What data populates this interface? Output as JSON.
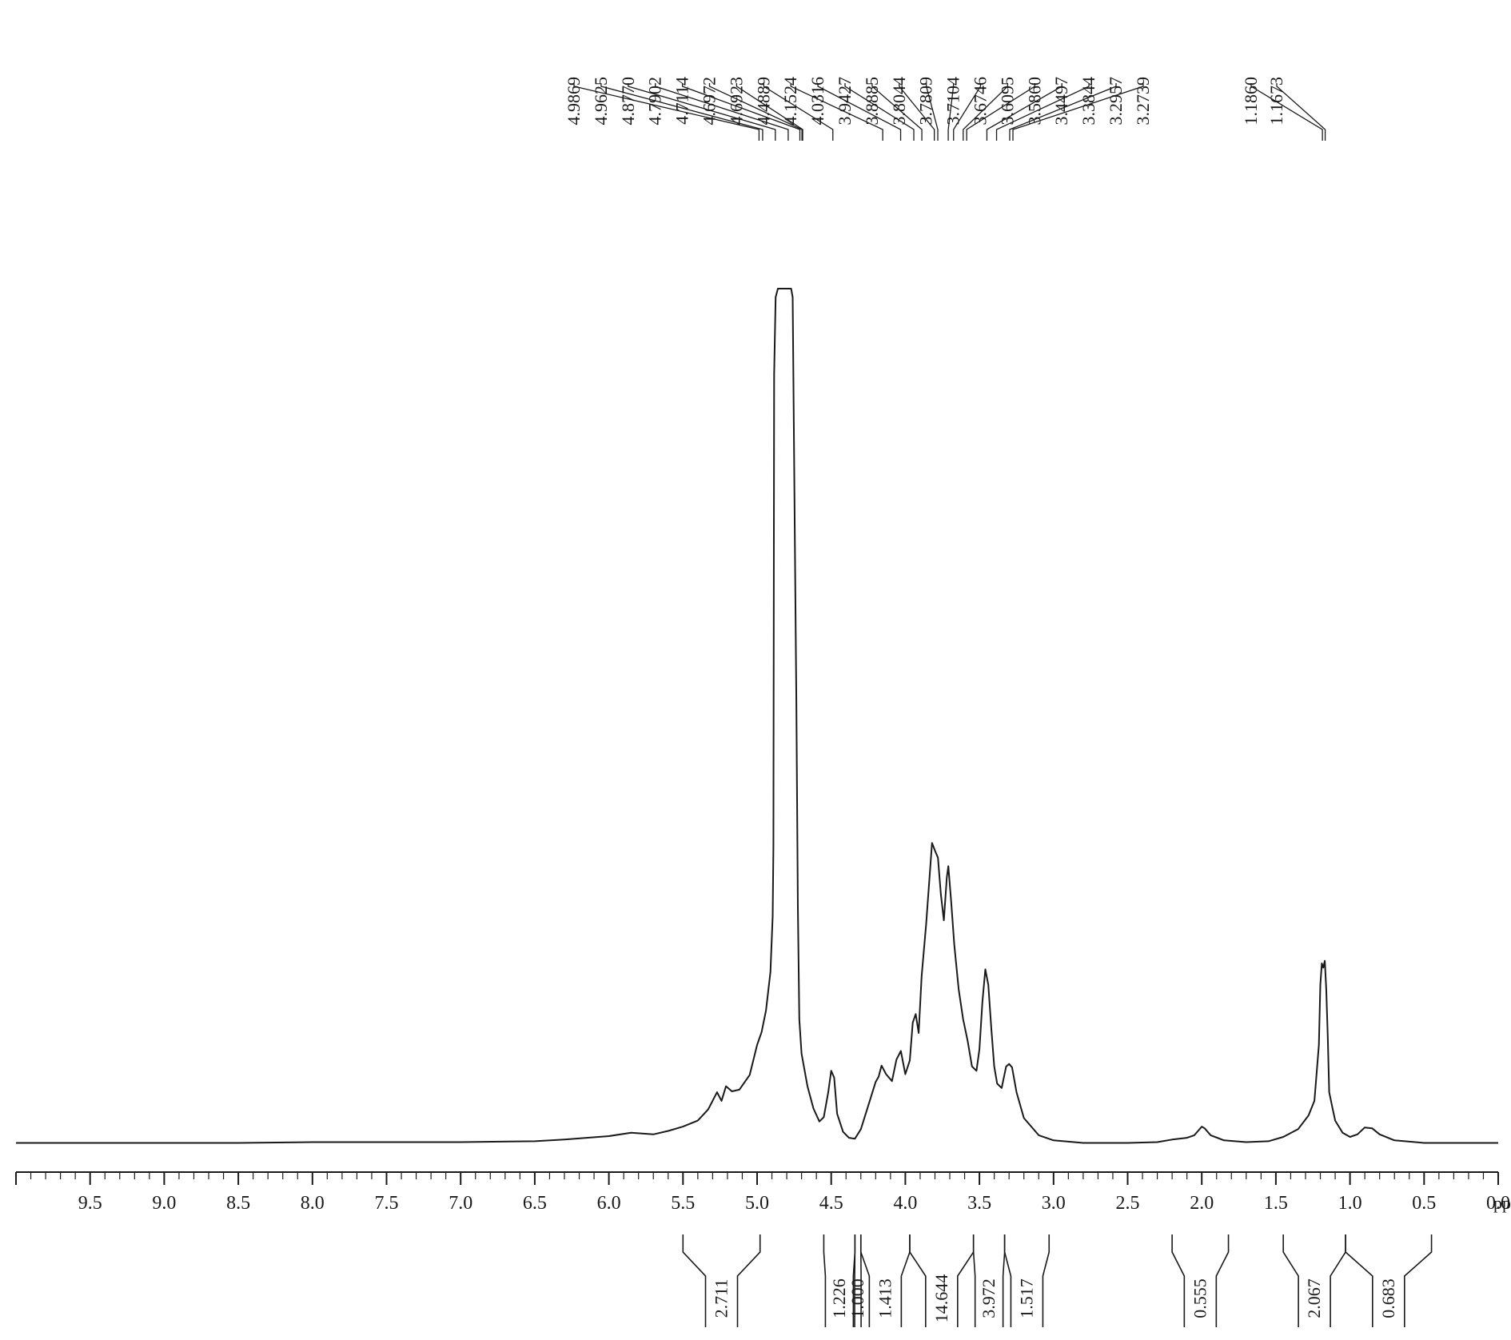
{
  "chart_data": {
    "type": "line",
    "x_unit": "ppm",
    "xlim": [
      10.0,
      0.0
    ],
    "x_reversed": true,
    "x_ticks": [
      9.5,
      9.0,
      8.5,
      8.0,
      7.5,
      7.0,
      6.5,
      6.0,
      5.5,
      5.0,
      4.5,
      4.0,
      3.5,
      3.0,
      2.5,
      2.0,
      1.5,
      1.0,
      0.5,
      0.0
    ],
    "x_tick_labels": [
      "9.5",
      "9.0",
      "8.5",
      "8.0",
      "7.5",
      "7.0",
      "6.5",
      "6.0",
      "5.5",
      "5.0",
      "4.5",
      "4.0",
      "3.5",
      "3.0",
      "2.5",
      "2.0",
      "1.5",
      "1.0",
      "0.5",
      "0.0"
    ],
    "ylim": [
      0,
      100
    ],
    "grid": false,
    "spectrum": [
      [
        10.0,
        0.6
      ],
      [
        9.5,
        0.6
      ],
      [
        9.0,
        0.6
      ],
      [
        8.5,
        0.6
      ],
      [
        8.0,
        0.7
      ],
      [
        7.5,
        0.7
      ],
      [
        7.0,
        0.7
      ],
      [
        6.5,
        0.8
      ],
      [
        6.3,
        1.0
      ],
      [
        6.0,
        1.4
      ],
      [
        5.85,
        1.8
      ],
      [
        5.7,
        1.6
      ],
      [
        5.6,
        2.0
      ],
      [
        5.5,
        2.5
      ],
      [
        5.4,
        3.2
      ],
      [
        5.33,
        4.5
      ],
      [
        5.27,
        6.5
      ],
      [
        5.24,
        5.5
      ],
      [
        5.21,
        7.2
      ],
      [
        5.17,
        6.6
      ],
      [
        5.12,
        6.8
      ],
      [
        5.05,
        8.5
      ],
      [
        5.0,
        12.0
      ],
      [
        4.97,
        13.5
      ],
      [
        4.94,
        16.0
      ],
      [
        4.91,
        20.5
      ],
      [
        4.895,
        27.0
      ],
      [
        4.89,
        35.0
      ],
      [
        4.885,
        90.0
      ],
      [
        4.875,
        99.0
      ],
      [
        4.86,
        100.0
      ],
      [
        4.84,
        100.0
      ],
      [
        4.82,
        100.0
      ],
      [
        4.79,
        100.0
      ],
      [
        4.77,
        100.0
      ],
      [
        4.76,
        99.0
      ],
      [
        4.745,
        70.0
      ],
      [
        4.735,
        52.0
      ],
      [
        4.725,
        28.0
      ],
      [
        4.715,
        15.0
      ],
      [
        4.7,
        11.0
      ],
      [
        4.66,
        7.2
      ],
      [
        4.62,
        4.6
      ],
      [
        4.58,
        3.1
      ],
      [
        4.55,
        3.6
      ],
      [
        4.52,
        6.5
      ],
      [
        4.5,
        9.0
      ],
      [
        4.48,
        8.2
      ],
      [
        4.46,
        4.0
      ],
      [
        4.42,
        1.9
      ],
      [
        4.38,
        1.2
      ],
      [
        4.34,
        1.1
      ],
      [
        4.3,
        2.2
      ],
      [
        4.24,
        5.5
      ],
      [
        4.2,
        7.7
      ],
      [
        4.18,
        8.3
      ],
      [
        4.16,
        9.6
      ],
      [
        4.13,
        8.6
      ],
      [
        4.09,
        7.8
      ],
      [
        4.06,
        10.3
      ],
      [
        4.03,
        11.3
      ],
      [
        4.0,
        8.6
      ],
      [
        3.97,
        10.2
      ],
      [
        3.95,
        14.6
      ],
      [
        3.93,
        15.6
      ],
      [
        3.91,
        13.4
      ],
      [
        3.89,
        20.0
      ],
      [
        3.86,
        26.0
      ],
      [
        3.82,
        35.5
      ],
      [
        3.8,
        34.6
      ],
      [
        3.78,
        33.8
      ],
      [
        3.76,
        29.5
      ],
      [
        3.74,
        26.5
      ],
      [
        3.72,
        31.5
      ],
      [
        3.71,
        32.8
      ],
      [
        3.69,
        28.5
      ],
      [
        3.67,
        23.7
      ],
      [
        3.64,
        18.5
      ],
      [
        3.61,
        15.0
      ],
      [
        3.58,
        12.5
      ],
      [
        3.55,
        9.5
      ],
      [
        3.52,
        9.0
      ],
      [
        3.5,
        11.5
      ],
      [
        3.48,
        17.0
      ],
      [
        3.46,
        20.8
      ],
      [
        3.44,
        19.0
      ],
      [
        3.42,
        14.0
      ],
      [
        3.4,
        9.5
      ],
      [
        3.38,
        7.5
      ],
      [
        3.35,
        7.0
      ],
      [
        3.32,
        9.5
      ],
      [
        3.3,
        9.8
      ],
      [
        3.28,
        9.4
      ],
      [
        3.25,
        6.5
      ],
      [
        3.2,
        3.5
      ],
      [
        3.1,
        1.5
      ],
      [
        3.0,
        0.9
      ],
      [
        2.8,
        0.6
      ],
      [
        2.5,
        0.6
      ],
      [
        2.3,
        0.7
      ],
      [
        2.2,
        1.0
      ],
      [
        2.1,
        1.2
      ],
      [
        2.05,
        1.5
      ],
      [
        2.0,
        2.5
      ],
      [
        1.98,
        2.3
      ],
      [
        1.94,
        1.5
      ],
      [
        1.85,
        0.9
      ],
      [
        1.7,
        0.7
      ],
      [
        1.55,
        0.8
      ],
      [
        1.45,
        1.3
      ],
      [
        1.35,
        2.2
      ],
      [
        1.28,
        3.8
      ],
      [
        1.24,
        5.5
      ],
      [
        1.21,
        12.0
      ],
      [
        1.2,
        19.0
      ],
      [
        1.19,
        21.5
      ],
      [
        1.18,
        21.0
      ],
      [
        1.17,
        21.8
      ],
      [
        1.16,
        18.5
      ],
      [
        1.15,
        13.0
      ],
      [
        1.14,
        6.5
      ],
      [
        1.12,
        4.8
      ],
      [
        1.1,
        3.2
      ],
      [
        1.05,
        1.8
      ],
      [
        1.0,
        1.3
      ],
      [
        0.95,
        1.6
      ],
      [
        0.9,
        2.4
      ],
      [
        0.85,
        2.3
      ],
      [
        0.8,
        1.6
      ],
      [
        0.7,
        0.9
      ],
      [
        0.5,
        0.6
      ],
      [
        0.0,
        0.6
      ]
    ],
    "peak_labels": [
      "4.9869",
      "4.9625",
      "4.8770",
      "4.7902",
      "4.7114",
      "4.6972",
      "4.6923",
      "4.4889",
      "4.1524",
      "4.0316",
      "3.9427",
      "3.8885",
      "3.8044",
      "3.7809",
      "3.7104",
      "3.6746",
      "3.6095",
      "3.5860",
      "3.4497",
      "3.3844",
      "3.2957",
      "3.2739",
      "1.1860",
      "1.1673"
    ],
    "peak_group_1": [
      "4.9869",
      "4.9625",
      "4.8770",
      "4.7902",
      "4.7114",
      "4.6972",
      "4.6923",
      "4.4889",
      "4.1524",
      "4.0316",
      "3.9427",
      "3.8885",
      "3.8044",
      "3.7809",
      "3.7104",
      "3.6746",
      "3.6095",
      "3.5860",
      "3.4497",
      "3.3844",
      "3.2957",
      "3.2739"
    ],
    "peak_group_2": [
      "1.1860",
      "1.1673"
    ],
    "integrals": [
      {
        "from": 5.5,
        "to": 4.98,
        "value": "2.711"
      },
      {
        "from": 4.55,
        "to": 4.34,
        "value": "1.226"
      },
      {
        "from": 4.34,
        "to": 4.3,
        "value": "1.000"
      },
      {
        "from": 4.3,
        "to": 3.97,
        "value": "1.413"
      },
      {
        "from": 3.97,
        "to": 3.54,
        "value": "14.644"
      },
      {
        "from": 3.54,
        "to": 3.33,
        "value": "3.972"
      },
      {
        "from": 3.33,
        "to": 3.03,
        "value": "1.517"
      },
      {
        "from": 2.2,
        "to": 1.82,
        "value": "0.555"
      },
      {
        "from": 1.45,
        "to": 1.03,
        "value": "2.067"
      },
      {
        "from": 1.03,
        "to": 0.45,
        "value": "0.683"
      }
    ]
  }
}
